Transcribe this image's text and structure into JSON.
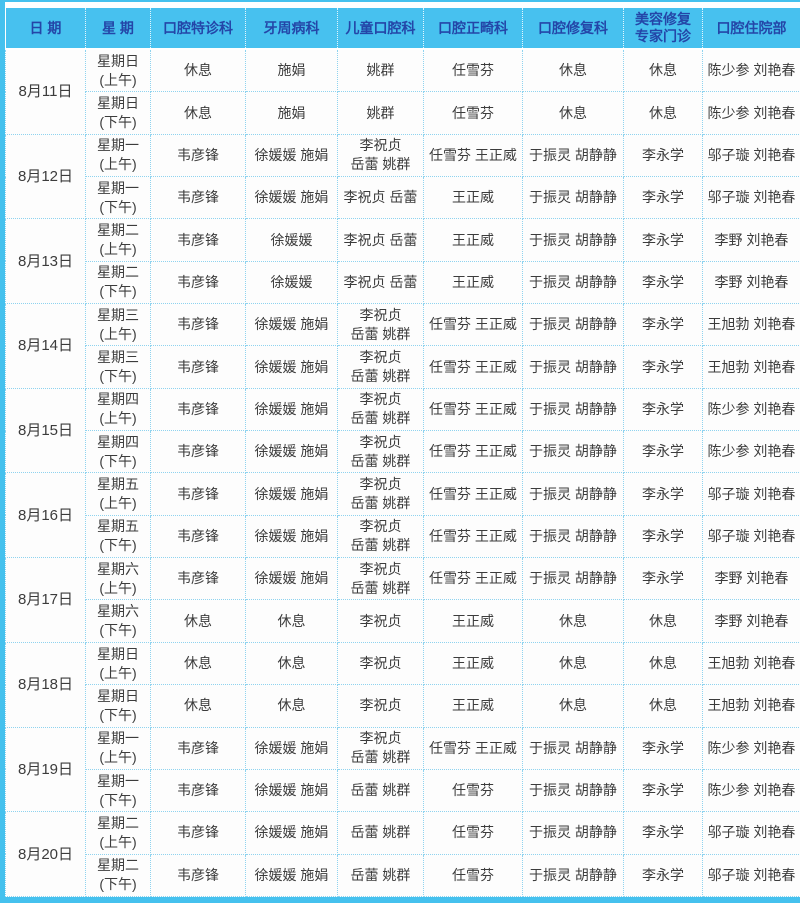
{
  "colors": {
    "frame": "#45c1ee",
    "header_bg": "#47c1ef",
    "header_text": "#2446a8",
    "grid_line": "#8fd3ef",
    "cell_bg": "#fdfdfd",
    "cell_text": "#3c3c3c"
  },
  "table": {
    "headers": [
      "日 期",
      "星 期",
      "口腔特诊科",
      "牙周病科",
      "儿童口腔科",
      "口腔正畸科",
      "口腔修复科",
      "美容修复\n专家门诊",
      "口腔住院部"
    ],
    "days": [
      {
        "date": "8月11日",
        "sessions": [
          {
            "weekday": "星期日",
            "period": "(上午)",
            "cells": [
              "休息",
              "施娟",
              "姚群",
              "任雪芬",
              "休息",
              "休息",
              "陈少参 刘艳春"
            ]
          },
          {
            "weekday": "星期日",
            "period": "(下午)",
            "cells": [
              "休息",
              "施娟",
              "姚群",
              "任雪芬",
              "休息",
              "休息",
              "陈少参 刘艳春"
            ]
          }
        ]
      },
      {
        "date": "8月12日",
        "sessions": [
          {
            "weekday": "星期一",
            "period": "(上午)",
            "cells": [
              "韦彦锋",
              "徐媛媛 施娟",
              "李祝贞\n岳蕾 姚群",
              "任雪芬 王正威",
              "于振灵 胡静静",
              "李永学",
              "邬子璇 刘艳春"
            ]
          },
          {
            "weekday": "星期一",
            "period": "(下午)",
            "cells": [
              "韦彦锋",
              "徐媛媛 施娟",
              "李祝贞 岳蕾",
              "王正威",
              "于振灵 胡静静",
              "李永学",
              "邬子璇 刘艳春"
            ]
          }
        ]
      },
      {
        "date": "8月13日",
        "sessions": [
          {
            "weekday": "星期二",
            "period": "(上午)",
            "cells": [
              "韦彦锋",
              "徐媛媛",
              "李祝贞 岳蕾",
              "王正威",
              "于振灵 胡静静",
              "李永学",
              "李野 刘艳春"
            ]
          },
          {
            "weekday": "星期二",
            "period": "(下午)",
            "cells": [
              "韦彦锋",
              "徐媛媛",
              "李祝贞 岳蕾",
              "王正威",
              "于振灵 胡静静",
              "李永学",
              "李野 刘艳春"
            ]
          }
        ]
      },
      {
        "date": "8月14日",
        "sessions": [
          {
            "weekday": "星期三",
            "period": "(上午)",
            "cells": [
              "韦彦锋",
              "徐媛媛 施娟",
              "李祝贞\n岳蕾 姚群",
              "任雪芬 王正威",
              "于振灵 胡静静",
              "李永学",
              "王旭勃 刘艳春"
            ]
          },
          {
            "weekday": "星期三",
            "period": "(下午)",
            "cells": [
              "韦彦锋",
              "徐媛媛 施娟",
              "李祝贞\n岳蕾 姚群",
              "任雪芬 王正威",
              "于振灵 胡静静",
              "李永学",
              "王旭勃 刘艳春"
            ]
          }
        ]
      },
      {
        "date": "8月15日",
        "sessions": [
          {
            "weekday": "星期四",
            "period": "(上午)",
            "cells": [
              "韦彦锋",
              "徐媛媛 施娟",
              "李祝贞\n岳蕾 姚群",
              "任雪芬 王正威",
              "于振灵 胡静静",
              "李永学",
              "陈少参 刘艳春"
            ]
          },
          {
            "weekday": "星期四",
            "period": "(下午)",
            "cells": [
              "韦彦锋",
              "徐媛媛 施娟",
              "李祝贞\n岳蕾 姚群",
              "任雪芬 王正威",
              "于振灵 胡静静",
              "李永学",
              "陈少参 刘艳春"
            ]
          }
        ]
      },
      {
        "date": "8月16日",
        "sessions": [
          {
            "weekday": "星期五",
            "period": "(上午)",
            "cells": [
              "韦彦锋",
              "徐媛媛 施娟",
              "李祝贞\n岳蕾 姚群",
              "任雪芬 王正威",
              "于振灵 胡静静",
              "李永学",
              "邬子璇 刘艳春"
            ]
          },
          {
            "weekday": "星期五",
            "period": "(下午)",
            "cells": [
              "韦彦锋",
              "徐媛媛 施娟",
              "李祝贞\n岳蕾 姚群",
              "任雪芬 王正威",
              "于振灵 胡静静",
              "李永学",
              "邬子璇 刘艳春"
            ]
          }
        ]
      },
      {
        "date": "8月17日",
        "sessions": [
          {
            "weekday": "星期六",
            "period": "(上午)",
            "cells": [
              "韦彦锋",
              "徐媛媛 施娟",
              "李祝贞\n岳蕾 姚群",
              "任雪芬 王正威",
              "于振灵 胡静静",
              "李永学",
              "李野 刘艳春"
            ]
          },
          {
            "weekday": "星期六",
            "period": "(下午)",
            "cells": [
              "休息",
              "休息",
              "李祝贞",
              "王正威",
              "休息",
              "休息",
              "李野 刘艳春"
            ]
          }
        ]
      },
      {
        "date": "8月18日",
        "sessions": [
          {
            "weekday": "星期日",
            "period": "(上午)",
            "cells": [
              "休息",
              "休息",
              "李祝贞",
              "王正威",
              "休息",
              "休息",
              "王旭勃 刘艳春"
            ]
          },
          {
            "weekday": "星期日",
            "period": "(下午)",
            "cells": [
              "休息",
              "休息",
              "李祝贞",
              "王正威",
              "休息",
              "休息",
              "王旭勃 刘艳春"
            ]
          }
        ]
      },
      {
        "date": "8月19日",
        "sessions": [
          {
            "weekday": "星期一",
            "period": "(上午)",
            "cells": [
              "韦彦锋",
              "徐媛媛 施娟",
              "李祝贞\n岳蕾 姚群",
              "任雪芬 王正威",
              "于振灵 胡静静",
              "李永学",
              "陈少参 刘艳春"
            ]
          },
          {
            "weekday": "星期一",
            "period": "(下午)",
            "cells": [
              "韦彦锋",
              "徐媛媛 施娟",
              "岳蕾 姚群",
              "任雪芬",
              "于振灵 胡静静",
              "李永学",
              "陈少参 刘艳春"
            ]
          }
        ]
      },
      {
        "date": "8月20日",
        "sessions": [
          {
            "weekday": "星期二",
            "period": "(上午)",
            "cells": [
              "韦彦锋",
              "徐媛媛 施娟",
              "岳蕾 姚群",
              "任雪芬",
              "于振灵 胡静静",
              "李永学",
              "邬子璇 刘艳春"
            ]
          },
          {
            "weekday": "星期二",
            "period": "(下午)",
            "cells": [
              "韦彦锋",
              "徐媛媛 施娟",
              "岳蕾 姚群",
              "任雪芬",
              "于振灵 胡静静",
              "李永学",
              "邬子璇 刘艳春"
            ]
          }
        ]
      }
    ]
  }
}
